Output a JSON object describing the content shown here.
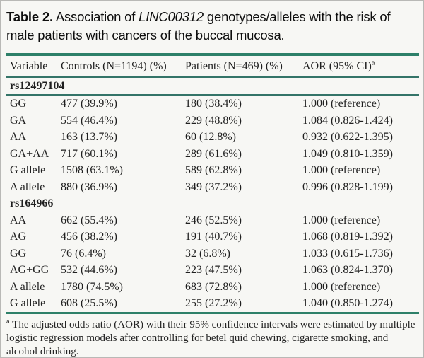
{
  "title": {
    "label": "Table 2.",
    "pre_gene": " Association of ",
    "gene": "LINC00312",
    "post_gene": " genotypes/alleles with the risk of male patients with cancers of the buccal mucosa."
  },
  "table": {
    "columns": [
      "Variable",
      "Controls (N=1194) (%)",
      "Patients (N=469) (%)",
      "AOR (95% CI)"
    ],
    "header_superscript": "a",
    "sections": [
      {
        "name": "rs12497104",
        "rows": [
          {
            "variable": "GG",
            "controls": "477 (39.9%)",
            "patients": "180 (38.4%)",
            "aor": "1.000 (reference)"
          },
          {
            "variable": "GA",
            "controls": "554 (46.4%)",
            "patients": "229 (48.8%)",
            "aor": "1.084 (0.826-1.424)"
          },
          {
            "variable": "AA",
            "controls": "163 (13.7%)",
            "patients": "60 (12.8%)",
            "aor": "0.932 (0.622-1.395)"
          },
          {
            "variable": "GA+AA",
            "controls": "717 (60.1%)",
            "patients": "289 (61.6%)",
            "aor": "1.049 (0.810-1.359)"
          },
          {
            "variable": "G allele",
            "controls": "1508 (63.1%)",
            "patients": "589 (62.8%)",
            "aor": "1.000 (reference)"
          },
          {
            "variable": "A allele",
            "controls": "880 (36.9%)",
            "patients": "349 (37.2%)",
            "aor": "0.996 (0.828-1.199)"
          }
        ]
      },
      {
        "name": "rs164966",
        "rows": [
          {
            "variable": "AA",
            "controls": "662 (55.4%)",
            "patients": "246 (52.5%)",
            "aor": "1.000 (reference)"
          },
          {
            "variable": "AG",
            "controls": "456 (38.2%)",
            "patients": "191 (40.7%)",
            "aor": "1.068 (0.819-1.392)"
          },
          {
            "variable": "GG",
            "controls": "76 (6.4%)",
            "patients": "32 (6.8%)",
            "aor": "1.033 (0.615-1.736)"
          },
          {
            "variable": "AG+GG",
            "controls": "532 (44.6%)",
            "patients": "223 (47.5%)",
            "aor": "1.063 (0.824-1.370)"
          },
          {
            "variable": "A allele",
            "controls": "1780 (74.5%)",
            "patients": "683 (72.8%)",
            "aor": "1.000 (reference)"
          },
          {
            "variable": "G allele",
            "controls": "608 (25.5%)",
            "patients": "255 (27.2%)",
            "aor": "1.040 (0.850-1.274)"
          }
        ]
      }
    ]
  },
  "footnote": {
    "superscript": "a",
    "text": " The adjusted odds ratio (AOR) with their 95% confidence intervals were estimated by multiple logistic regression models after controlling for betel quid chewing, cigarette smoking, and alcohol drinking."
  },
  "colors": {
    "rule_thick": "#2e8069",
    "rule_thin": "#347468",
    "text": "#1f1f1f",
    "background": "#f7f7f4"
  }
}
